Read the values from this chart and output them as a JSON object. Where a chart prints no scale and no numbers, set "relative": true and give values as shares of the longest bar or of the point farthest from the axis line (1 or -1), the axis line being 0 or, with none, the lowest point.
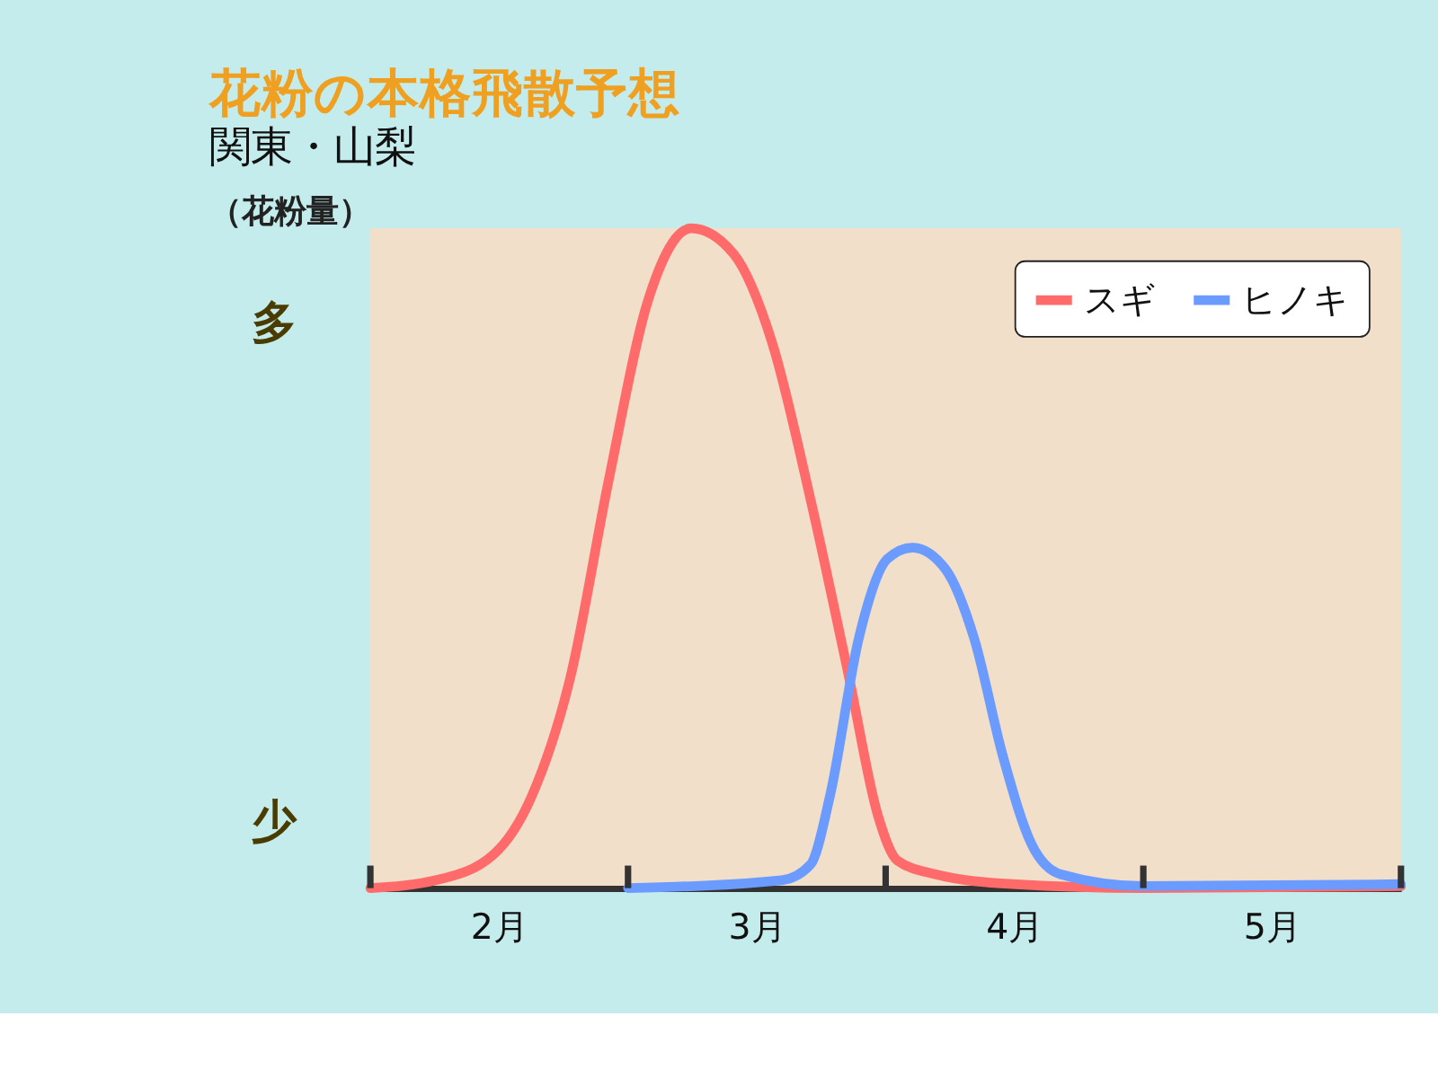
{
  "chart_data": {
    "type": "line",
    "title": "花粉の本格飛散予想",
    "subtitle": "関東・山梨",
    "ylabel": "（花粉量）",
    "relative": true,
    "annotations": [
      "多",
      "少"
    ],
    "xlim": [
      2,
      6
    ],
    "xticks": [
      {
        "value": 2,
        "label": null
      },
      {
        "value": 2.5,
        "label": "2月"
      },
      {
        "value": 3,
        "label": null
      },
      {
        "value": 3.5,
        "label": "3月"
      },
      {
        "value": 4,
        "label": null
      },
      {
        "value": 4.5,
        "label": "4月"
      },
      {
        "value": 5,
        "label": null
      },
      {
        "value": 5.5,
        "label": "5月"
      },
      {
        "value": 6,
        "label": null
      }
    ],
    "legend": "top right",
    "grid": false,
    "marker": "none",
    "line_style": "solid",
    "series": [
      {
        "name": "スギ",
        "color": "#ff6b6b",
        "x": [
          2.0,
          2.254,
          2.478,
          2.627,
          2.776,
          2.925,
          3.075,
          3.246,
          3.41,
          3.559,
          3.709,
          3.858,
          3.97,
          4.045,
          4.194,
          4.493,
          5.0,
          6.0
        ],
        "values": [
          0,
          0.012,
          0.051,
          0.14,
          0.319,
          0.618,
          0.887,
          1,
          0.961,
          0.827,
          0.588,
          0.319,
          0.11,
          0.042,
          0.021,
          0.006,
          0,
          0.003
        ]
      },
      {
        "name": "ヒノキ",
        "color": "#6b9bff",
        "x": [
          3.0,
          3.597,
          3.709,
          3.784,
          3.896,
          4.007,
          4.104,
          4.231,
          4.343,
          4.455,
          4.567,
          4.679,
          5.0,
          6.0
        ],
        "values": [
          0,
          0.012,
          0.036,
          0.14,
          0.379,
          0.499,
          0.516,
          0.484,
          0.379,
          0.2,
          0.066,
          0.021,
          0.003,
          0.006
        ]
      }
    ]
  }
}
